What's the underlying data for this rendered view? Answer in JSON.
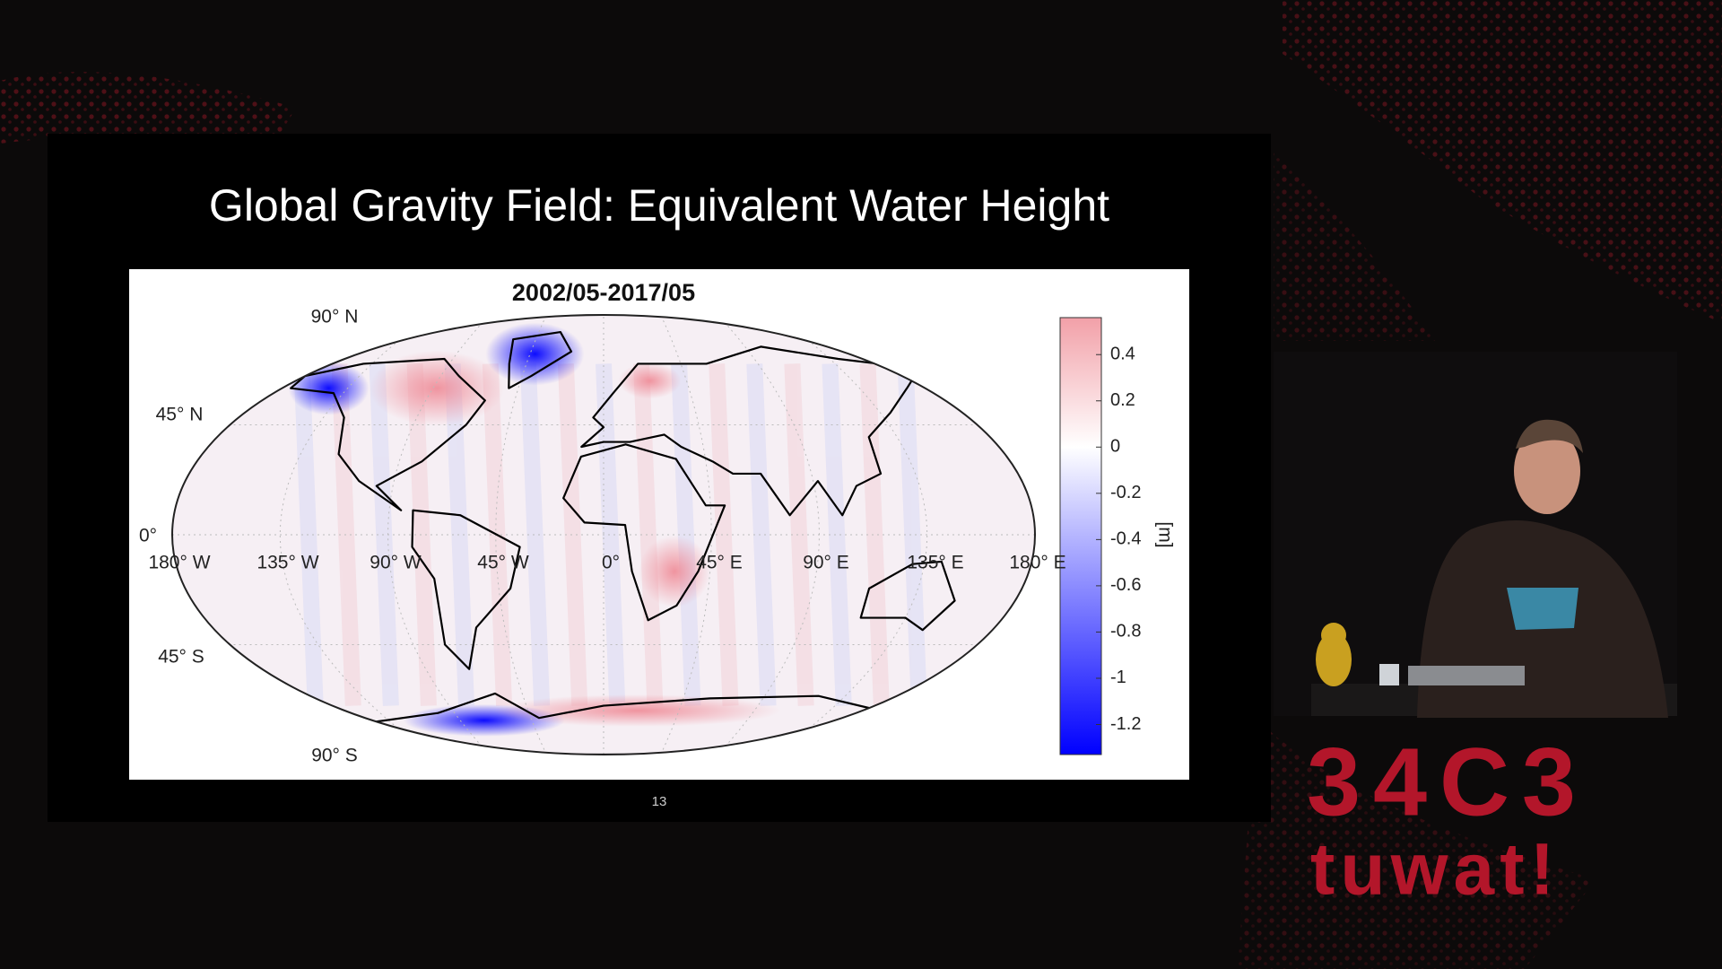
{
  "slide": {
    "title": "Global Gravity Field: Equivalent Water Height",
    "page_number": "13"
  },
  "map": {
    "title": "2002/05-2017/05",
    "lat_labels": [
      "90° N",
      "45° N",
      "0°",
      "45° S",
      "90° S"
    ],
    "lon_labels": [
      "180° W",
      "135° W",
      "90° W",
      "45° W",
      "0°",
      "45° E",
      "90° E",
      "135° E",
      "180° E"
    ],
    "colorbar": {
      "label": "[m]",
      "lim": [
        -1.33,
        0.56
      ],
      "ticks": [
        0.4,
        0.2,
        0,
        -0.2,
        -0.4,
        -0.6,
        -0.8,
        -1,
        -1.2
      ],
      "colors": [
        "#0000ff",
        "#ffffff",
        "#f2a0a8"
      ]
    }
  },
  "logo": {
    "line1": "34C3",
    "line2": "tuwat!"
  }
}
